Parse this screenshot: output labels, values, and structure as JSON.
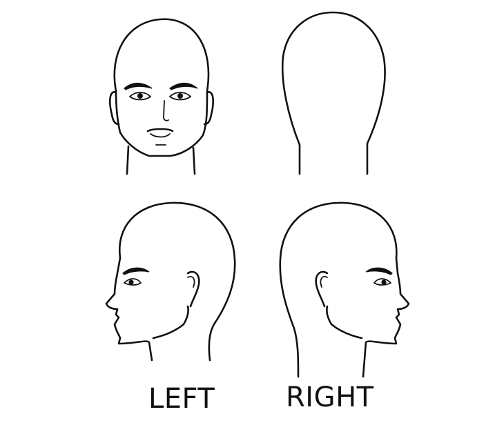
{
  "labels": {
    "left": "LEFT",
    "right": "RIGHT"
  },
  "colors": {
    "line": "#111111",
    "background": "#ffffff"
  }
}
